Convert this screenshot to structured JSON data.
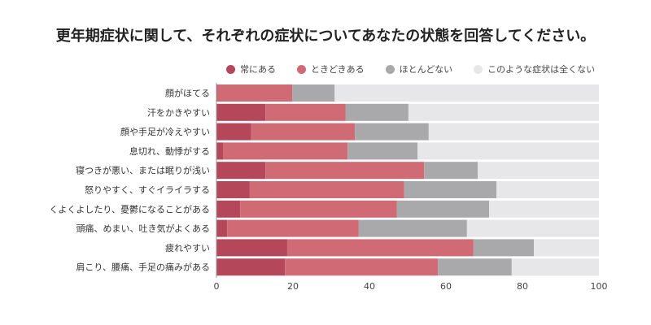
{
  "chart_data": {
    "type": "bar",
    "orientation": "horizontal",
    "stacked": true,
    "title": "更年期症状に関して、それぞれの症状についてあなたの状態を回答してください。",
    "categories": [
      "顔がほてる",
      "汗をかきやすい",
      "顔や手足が冷えやすい",
      "息切れ、動悸がする",
      "寝つきが悪い、または眠りが浅い",
      "怒りやすく、すぐイライラする",
      "くよくよしたり、憂鬱になることがある",
      "頭痛、めまい、吐き気がよくある",
      "疲れやすい",
      "肩こり、腰痛、手足の痛みがある"
    ],
    "series": [
      {
        "name": "常にある",
        "color": "#b5475a",
        "values": [
          0.3,
          12.8,
          9.1,
          1.7,
          12.8,
          8.7,
          6.2,
          2.8,
          18.5,
          17.9
        ]
      },
      {
        "name": "ときどきある",
        "color": "#d06a74",
        "values": [
          19.5,
          21.0,
          27.1,
          32.6,
          41.5,
          40.4,
          41.0,
          34.4,
          48.7,
          40.0
        ]
      },
      {
        "name": "ほとんどない",
        "color": "#a9a9ab",
        "values": [
          11.1,
          16.4,
          19.3,
          18.3,
          14.0,
          24.1,
          24.1,
          28.3,
          15.8,
          19.3
        ]
      },
      {
        "name": "このような症状は全くない",
        "color": "#e7e6e9",
        "values": [
          69.1,
          49.8,
          44.5,
          47.4,
          31.7,
          26.8,
          28.7,
          34.5,
          17.0,
          22.8
        ]
      }
    ],
    "xlim": [
      0,
      100
    ],
    "xticks": [
      "0",
      "20",
      "40",
      "60",
      "80",
      "100"
    ],
    "legend_position": "top"
  }
}
